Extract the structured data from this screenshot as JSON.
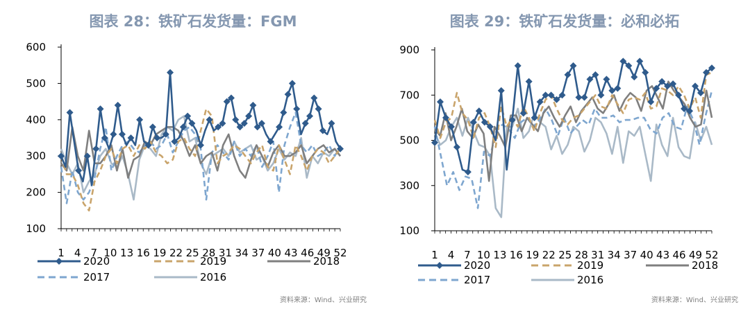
{
  "chart_data": [
    {
      "type": "line",
      "title": "图表 28：铁矿石发货量：FGM",
      "source": "资料来源：Wind、兴业研究",
      "x_ticks": [
        "1",
        "4",
        "7",
        "10",
        "13",
        "16",
        "19",
        "22",
        "25",
        "28",
        "31",
        "34",
        "37",
        "40",
        "43",
        "46",
        "49",
        "52"
      ],
      "y_ticks": [
        "100",
        "200",
        "300",
        "400",
        "500",
        "600"
      ],
      "ylim": [
        100,
        600
      ],
      "xlim": [
        1,
        52
      ],
      "legend": {
        "position": "bottom",
        "columns": 3
      },
      "series": [
        {
          "name": "2020",
          "color": "#2f5b8c",
          "style": "marker",
          "values": [
            300,
            270,
            420,
            340,
            260,
            230,
            300,
            220,
            320,
            430,
            350,
            320,
            360,
            440,
            360,
            330,
            350,
            330,
            400,
            340,
            330,
            380,
            350,
            350,
            360,
            530,
            340,
            350,
            380,
            410,
            390,
            370,
            330,
            370,
            400,
            370,
            380,
            390,
            450,
            460,
            400,
            380,
            390,
            410,
            440,
            380,
            390,
            360,
            340,
            360,
            380,
            420,
            470,
            500,
            430,
            360,
            390,
            410,
            460,
            430,
            370,
            360,
            390,
            340,
            320
          ]
        },
        {
          "name": "2019",
          "color": "#c9a46b",
          "style": "dash",
          "values": [
            300,
            250,
            250,
            220,
            170,
            150,
            230,
            260,
            300,
            320,
            280,
            320,
            330,
            300,
            330,
            320,
            340,
            310,
            300,
            280,
            290,
            340,
            350,
            320,
            300,
            370,
            430,
            410,
            280,
            300,
            310,
            330,
            320,
            300,
            280,
            310,
            330,
            270,
            260,
            330,
            290,
            250,
            330,
            300,
            260,
            300,
            320,
            310,
            280,
            300,
            320
          ]
        },
        {
          "name": "2018",
          "color": "#7f7f7f",
          "style": "solid",
          "values": [
            280,
            260,
            380,
            300,
            260,
            370,
            280,
            280,
            300,
            330,
            260,
            320,
            240,
            290,
            300,
            340,
            330,
            360,
            370,
            380,
            380,
            370,
            340,
            300,
            330,
            280,
            300,
            310,
            260,
            330,
            360,
            300,
            260,
            240,
            290,
            330,
            300,
            270,
            310,
            330,
            300,
            300,
            310,
            330,
            280,
            300,
            320,
            330,
            310,
            320,
            300
          ]
        },
        {
          "name": "2017",
          "color": "#7ea6cf",
          "style": "dash",
          "values": [
            270,
            170,
            260,
            200,
            180,
            200,
            240,
            320,
            380,
            260,
            300,
            330,
            340,
            320,
            310,
            330,
            340,
            320,
            330,
            360,
            310,
            340,
            370,
            380,
            360,
            320,
            180,
            310,
            330,
            310,
            290,
            340,
            300,
            320,
            300,
            330,
            270,
            300,
            340,
            200,
            330,
            380,
            420,
            330,
            310,
            330,
            300,
            310,
            330,
            300,
            330
          ]
        },
        {
          "name": "2016",
          "color": "#a9b9c7",
          "style": "solid",
          "values": [
            320,
            280,
            250,
            280,
            200,
            230,
            250,
            300,
            320,
            280,
            270,
            300,
            250,
            180,
            290,
            330,
            320,
            300,
            360,
            380,
            370,
            400,
            410,
            340,
            350,
            280,
            250,
            300,
            310,
            320,
            300,
            340,
            310,
            320,
            330,
            290,
            300,
            260,
            280,
            320,
            290,
            310,
            300,
            350,
            240,
            300,
            280,
            310,
            300,
            320,
            300
          ]
        }
      ]
    },
    {
      "type": "line",
      "title": "图表 29：铁矿石发货量：必和必拓",
      "source": "资料来源：Wind、兴业研究",
      "x_ticks": [
        "1",
        "4",
        "7",
        "10",
        "13",
        "16",
        "19",
        "22",
        "25",
        "28",
        "31",
        "34",
        "37",
        "40",
        "43",
        "46",
        "49",
        "52"
      ],
      "y_ticks": [
        "100",
        "300",
        "500",
        "700",
        "900"
      ],
      "ylim": [
        100,
        900
      ],
      "xlim": [
        1,
        52
      ],
      "legend": {
        "position": "bottom",
        "columns": 3
      },
      "series": [
        {
          "name": "2020",
          "color": "#2f5b8c",
          "style": "marker",
          "values": [
            490,
            670,
            600,
            560,
            470,
            370,
            360,
            580,
            630,
            580,
            560,
            500,
            720,
            370,
            590,
            830,
            620,
            760,
            600,
            670,
            700,
            700,
            680,
            700,
            790,
            830,
            690,
            690,
            770,
            790,
            700,
            770,
            720,
            730,
            850,
            830,
            780,
            850,
            800,
            670,
            730,
            760,
            740,
            750,
            700,
            640,
            630,
            740,
            710,
            800,
            820
          ]
        },
        {
          "name": "2019",
          "color": "#c9a46b",
          "style": "dash",
          "values": [
            590,
            510,
            580,
            600,
            710,
            620,
            590,
            510,
            600,
            620,
            560,
            470,
            650,
            560,
            600,
            560,
            650,
            600,
            540,
            620,
            680,
            700,
            640,
            590,
            570,
            600,
            610,
            640,
            670,
            700,
            650,
            640,
            700,
            660,
            620,
            680,
            690,
            680,
            710,
            640,
            650,
            730,
            720,
            700,
            740,
            700,
            640,
            690,
            600,
            790,
            800
          ]
        },
        {
          "name": "2018",
          "color": "#7f7f7f",
          "style": "solid",
          "values": [
            550,
            520,
            620,
            500,
            560,
            640,
            540,
            510,
            570,
            530,
            320,
            560,
            520,
            470,
            610,
            610,
            540,
            600,
            570,
            540,
            620,
            650,
            600,
            560,
            610,
            650,
            580,
            630,
            660,
            690,
            640,
            620,
            660,
            700,
            630,
            680,
            710,
            690,
            630,
            720,
            740,
            690,
            640,
            760,
            720,
            690,
            660,
            600,
            560,
            570,
            720,
            600
          ]
        },
        {
          "name": "2017",
          "color": "#7ea6cf",
          "style": "dash",
          "values": [
            560,
            430,
            300,
            360,
            280,
            340,
            330,
            200,
            450,
            430,
            540,
            570,
            550,
            510,
            580,
            600,
            560,
            590,
            640,
            590,
            520,
            600,
            530,
            560,
            590,
            570,
            640,
            600,
            600,
            610,
            580,
            590,
            590,
            600,
            600,
            550,
            530,
            600,
            620,
            560,
            550,
            650,
            590,
            480,
            610,
            720
          ]
        },
        {
          "name": "2016",
          "color": "#a9b9c7",
          "style": "solid",
          "values": [
            530,
            480,
            500,
            560,
            600,
            520,
            600,
            540,
            480,
            470,
            430,
            200,
            160,
            560,
            560,
            640,
            510,
            540,
            620,
            580,
            560,
            460,
            520,
            440,
            480,
            560,
            540,
            450,
            500,
            600,
            580,
            530,
            440,
            560,
            400,
            540,
            520,
            560,
            440,
            320,
            570,
            480,
            430,
            600,
            470,
            430,
            420,
            580,
            500,
            560,
            480
          ]
        }
      ]
    }
  ]
}
